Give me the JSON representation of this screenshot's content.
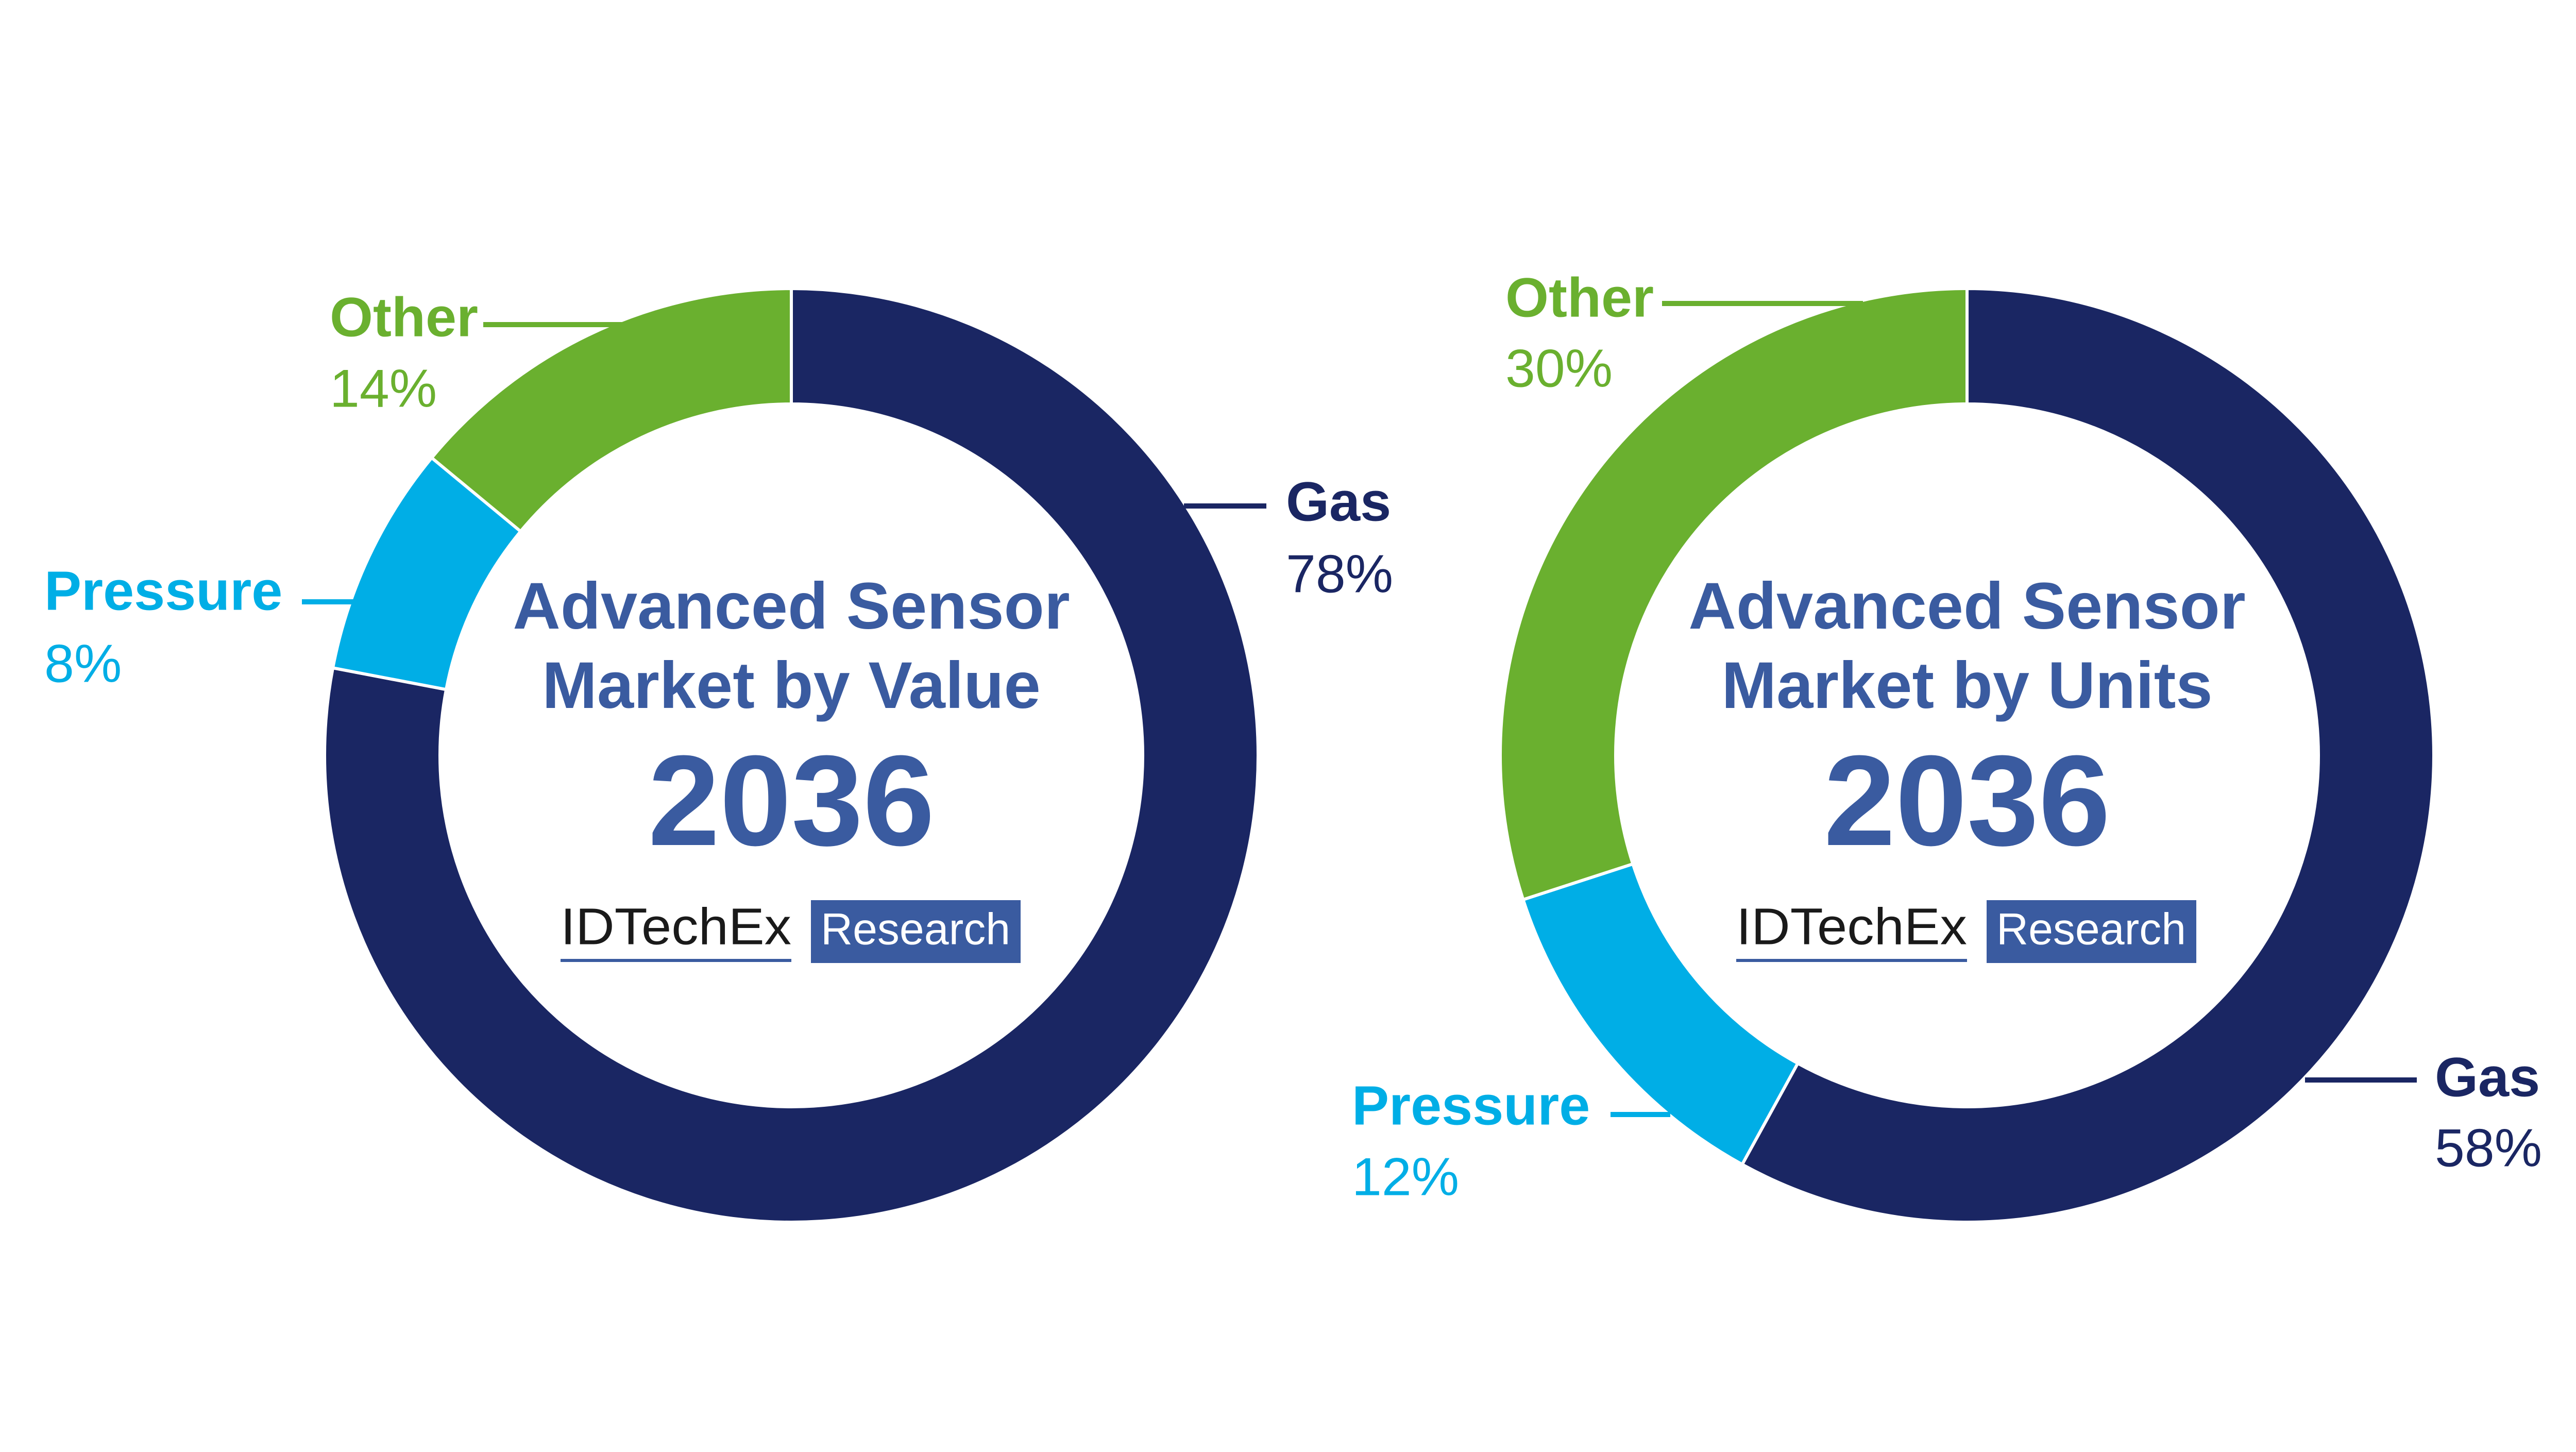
{
  "chart_data": [
    {
      "type": "pie",
      "title": "Advanced Sensor Market by Value",
      "subtitle": "2036",
      "logo": {
        "name": "IDTechEx",
        "tag": "Research"
      },
      "categories": [
        "Gas",
        "Pressure",
        "Other"
      ],
      "values": [
        78,
        8,
        14
      ],
      "value_labels": [
        "78%",
        "8%",
        "14%"
      ],
      "colors": [
        "#1a2663",
        "#00aee6",
        "#6ab02f"
      ]
    },
    {
      "type": "pie",
      "title": "Advanced Sensor Market by Units",
      "subtitle": "2036",
      "logo": {
        "name": "IDTechEx",
        "tag": "Research"
      },
      "categories": [
        "Gas",
        "Pressure",
        "Other"
      ],
      "values": [
        58,
        12,
        30
      ],
      "value_labels": [
        "58%",
        "12%",
        "30%"
      ],
      "colors": [
        "#1a2663",
        "#00aee6",
        "#6ab02f"
      ]
    }
  ]
}
